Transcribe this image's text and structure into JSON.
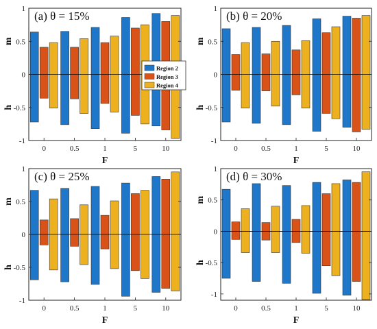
{
  "colors": {
    "region2": "#1f77c9",
    "region3": "#d95319",
    "region4": "#edb120"
  },
  "legend": [
    "Region 2",
    "Region 3",
    "Region 4"
  ],
  "chart_data": [
    {
      "type": "bar",
      "title": "(a)  θ = 15%",
      "xlabel": "F",
      "ylabel_top": "m",
      "ylabel_bottom": "h",
      "categories": [
        "0",
        "0.5",
        "1",
        "5",
        "10"
      ],
      "ylim": [
        -1,
        1
      ],
      "yticks": [
        "1",
        "0.5",
        "0",
        "-0.5",
        "-1"
      ],
      "series": [
        {
          "name": "Region 2",
          "m": [
            0.64,
            0.65,
            0.71,
            0.86,
            0.92
          ],
          "h": [
            -0.72,
            -0.76,
            -0.82,
            -0.89,
            -0.78
          ]
        },
        {
          "name": "Region 3",
          "m": [
            0.41,
            0.41,
            0.48,
            0.7,
            0.8
          ],
          "h": [
            -0.36,
            -0.37,
            -0.44,
            -0.62,
            -0.84
          ]
        },
        {
          "name": "Region 4",
          "m": [
            0.48,
            0.54,
            0.58,
            0.75,
            0.89
          ],
          "h": [
            -0.51,
            -0.59,
            -0.57,
            -0.75,
            -0.97
          ]
        }
      ]
    },
    {
      "type": "bar",
      "title": "(b)  θ = 20%",
      "xlabel": "F",
      "ylabel_top": "m",
      "ylabel_bottom": "h",
      "categories": [
        "0",
        "0.5",
        "1",
        "5",
        "10"
      ],
      "ylim": [
        -1,
        1
      ],
      "yticks": [
        "1",
        "0.5",
        "0",
        "-0.5",
        "-1"
      ],
      "series": [
        {
          "name": "Region 2",
          "m": [
            0.69,
            0.71,
            0.74,
            0.84,
            0.88
          ],
          "h": [
            -0.72,
            -0.74,
            -0.76,
            -0.86,
            -0.8
          ]
        },
        {
          "name": "Region 3",
          "m": [
            0.3,
            0.31,
            0.37,
            0.63,
            0.85
          ],
          "h": [
            -0.24,
            -0.25,
            -0.31,
            -0.59,
            -0.87
          ]
        },
        {
          "name": "Region 4",
          "m": [
            0.48,
            0.5,
            0.51,
            0.72,
            0.89
          ],
          "h": [
            -0.51,
            -0.48,
            -0.51,
            -0.67,
            -0.83
          ]
        }
      ]
    },
    {
      "type": "bar",
      "title": "(c)  θ = 25%",
      "xlabel": "F",
      "ylabel_top": "m",
      "ylabel_bottom": "h",
      "categories": [
        "0",
        "0.5",
        "1",
        "5",
        "10"
      ],
      "ylim": [
        -1,
        1
      ],
      "yticks": [
        "1",
        "0.5",
        "0",
        "-0.5",
        "-1"
      ],
      "series": [
        {
          "name": "Region 2",
          "m": [
            0.67,
            0.7,
            0.73,
            0.78,
            0.88
          ],
          "h": [
            -0.69,
            -0.72,
            -0.76,
            -0.94,
            -0.88
          ]
        },
        {
          "name": "Region 3",
          "m": [
            0.22,
            0.24,
            0.29,
            0.62,
            0.84
          ],
          "h": [
            -0.16,
            -0.18,
            -0.22,
            -0.55,
            -0.82
          ]
        },
        {
          "name": "Region 4",
          "m": [
            0.54,
            0.45,
            0.51,
            0.67,
            0.95
          ],
          "h": [
            -0.54,
            -0.46,
            -0.52,
            -0.67,
            -0.86
          ]
        }
      ]
    },
    {
      "type": "bar",
      "title": "(d)  θ = 30%",
      "xlabel": "F",
      "ylabel_top": "m",
      "ylabel_bottom": "h",
      "categories": [
        "0",
        "0.5",
        "1",
        "5",
        "10"
      ],
      "ylim": [
        -1.1,
        1
      ],
      "yticks": [
        "1",
        "0.5",
        "0",
        "-0.5",
        "-1"
      ],
      "series": [
        {
          "name": "Region 2",
          "m": [
            0.67,
            0.76,
            0.73,
            0.78,
            0.82
          ],
          "h": [
            -0.75,
            -0.8,
            -0.83,
            -0.99,
            -1.02
          ]
        },
        {
          "name": "Region 3",
          "m": [
            0.15,
            0.14,
            0.19,
            0.6,
            0.78
          ],
          "h": [
            -0.13,
            -0.14,
            -0.18,
            -0.55,
            -0.8
          ]
        },
        {
          "name": "Region 4",
          "m": [
            0.36,
            0.4,
            0.41,
            0.76,
            0.95
          ],
          "h": [
            -0.34,
            -0.34,
            -0.35,
            -0.71,
            -1.09
          ]
        }
      ]
    }
  ]
}
